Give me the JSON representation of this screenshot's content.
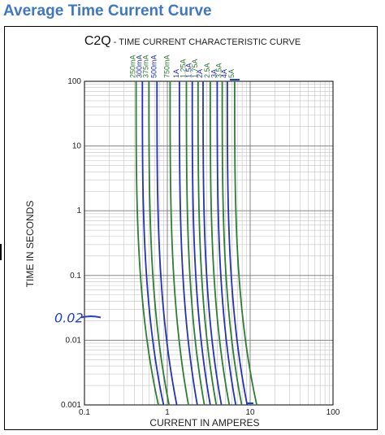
{
  "header": {
    "title": "Average Time Current Curve"
  },
  "chart_data": {
    "type": "line",
    "title_main": "C2Q",
    "title_rest": " - TIME CURRENT CHARACTERISTIC CURVE",
    "xlabel": "CURRENT IN AMPERES",
    "ylabel": "TIME IN SECONDS",
    "x_scale": "log",
    "y_scale": "log",
    "xlim": [
      0.1,
      100
    ],
    "ylim": [
      0.001,
      100
    ],
    "x_ticks": [
      {
        "value": 0.1,
        "label": "0.1"
      },
      {
        "value": 1,
        "label": "1"
      },
      {
        "value": 10,
        "label": "10"
      },
      {
        "value": 100,
        "label": "100"
      }
    ],
    "y_ticks": [
      {
        "value": 100,
        "label": "100"
      },
      {
        "value": 10,
        "label": "10"
      },
      {
        "value": 1,
        "label": "1"
      },
      {
        "value": 0.1,
        "label": "0.1"
      },
      {
        "value": 0.01,
        "label": "0.01"
      },
      {
        "value": 0.001,
        "label": "0.001"
      }
    ],
    "grid": true,
    "colors": {
      "green": "#2e7d32",
      "blue": "#2533b0",
      "annotation": "#1f3fd0"
    },
    "series": [
      {
        "name": "250mA",
        "color": "green",
        "x_at_100s": 0.42,
        "x_at_0_001s": 0.78
      },
      {
        "name": "300mA",
        "color": "blue",
        "x_at_100s": 0.5,
        "x_at_0_001s": 0.9
      },
      {
        "name": "375mA",
        "color": "green",
        "x_at_100s": 0.6,
        "x_at_0_001s": 1.05
      },
      {
        "name": "500mA",
        "color": "blue",
        "x_at_100s": 0.75,
        "x_at_0_001s": 1.3
      },
      {
        "name": "750mA",
        "color": "green",
        "x_at_100s": 1.08,
        "x_at_0_001s": 1.8
      },
      {
        "name": "1A",
        "color": "blue",
        "x_at_100s": 1.4,
        "x_at_0_001s": 2.3
      },
      {
        "name": "1.25A",
        "color": "green",
        "x_at_100s": 1.7,
        "x_at_0_001s": 2.8
      },
      {
        "name": "1.5A",
        "color": "blue",
        "x_at_100s": 2.0,
        "x_at_0_001s": 3.3
      },
      {
        "name": "1.75A",
        "color": "green",
        "x_at_100s": 2.35,
        "x_at_0_001s": 3.9
      },
      {
        "name": "2A",
        "color": "blue",
        "x_at_100s": 2.7,
        "x_at_0_001s": 4.5
      },
      {
        "name": "2.5A",
        "color": "green",
        "x_at_100s": 3.3,
        "x_at_0_001s": 5.6
      },
      {
        "name": "3A",
        "color": "blue",
        "x_at_100s": 4.0,
        "x_at_0_001s": 6.7
      },
      {
        "name": "3.5A",
        "color": "green",
        "x_at_100s": 4.6,
        "x_at_0_001s": 7.9
      },
      {
        "name": "4A",
        "color": "blue",
        "x_at_100s": 5.3,
        "x_at_0_001s": 9.2
      },
      {
        "name": "5A",
        "color": "green",
        "x_at_100s": 6.5,
        "x_at_0_001s": 12.0
      }
    ],
    "annotation": {
      "text": "0.02",
      "y_value": 0.02
    }
  }
}
